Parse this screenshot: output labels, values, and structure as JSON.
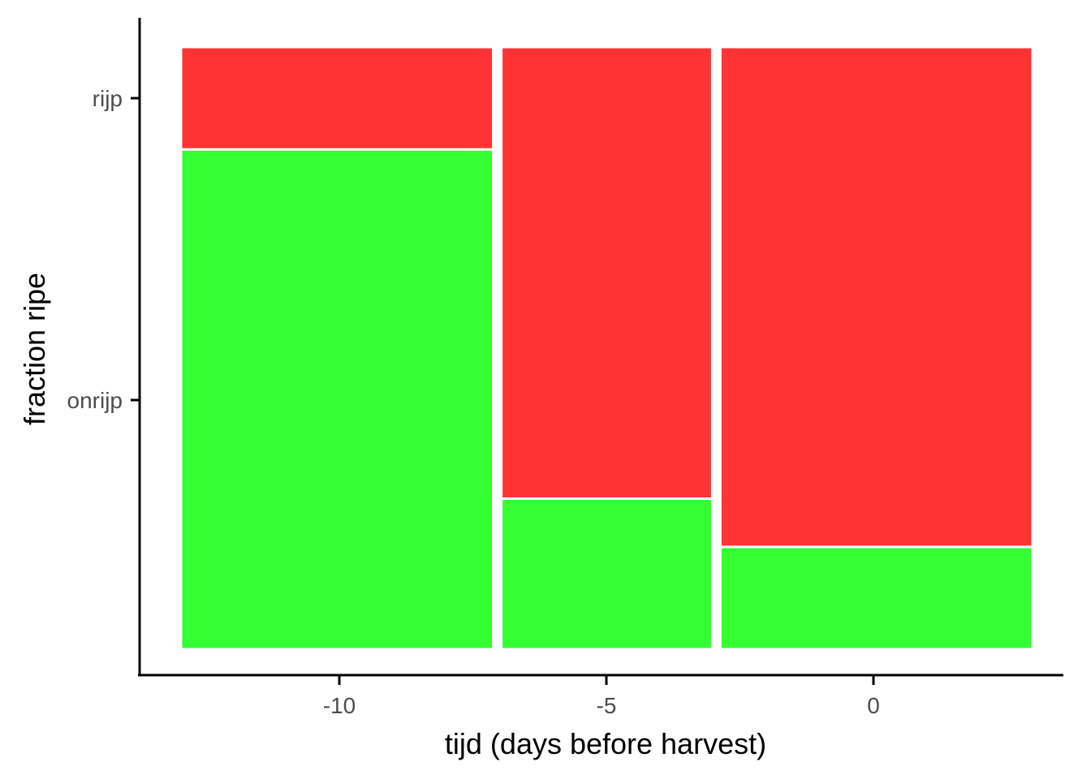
{
  "chart_data": {
    "type": "mosaic",
    "xlabel": "tijd (days before harvest)",
    "ylabel": "fraction ripe",
    "x_ticks": [
      -10,
      -5,
      0
    ],
    "y_categories": [
      "onrijp",
      "rijp"
    ],
    "colors": {
      "onrijp": "#33ff33",
      "rijp": "#ff3333"
    },
    "grid": false,
    "legend": "none",
    "columns": [
      {
        "x": -10,
        "relative_width": 0.37,
        "fractions": {
          "onrijp": 0.83,
          "rijp": 0.17
        }
      },
      {
        "x": -5,
        "relative_width": 0.25,
        "fractions": {
          "onrijp": 0.25,
          "rijp": 0.75
        }
      },
      {
        "x": 0,
        "relative_width": 0.37,
        "fractions": {
          "onrijp": 0.17,
          "rijp": 0.83
        }
      }
    ]
  }
}
